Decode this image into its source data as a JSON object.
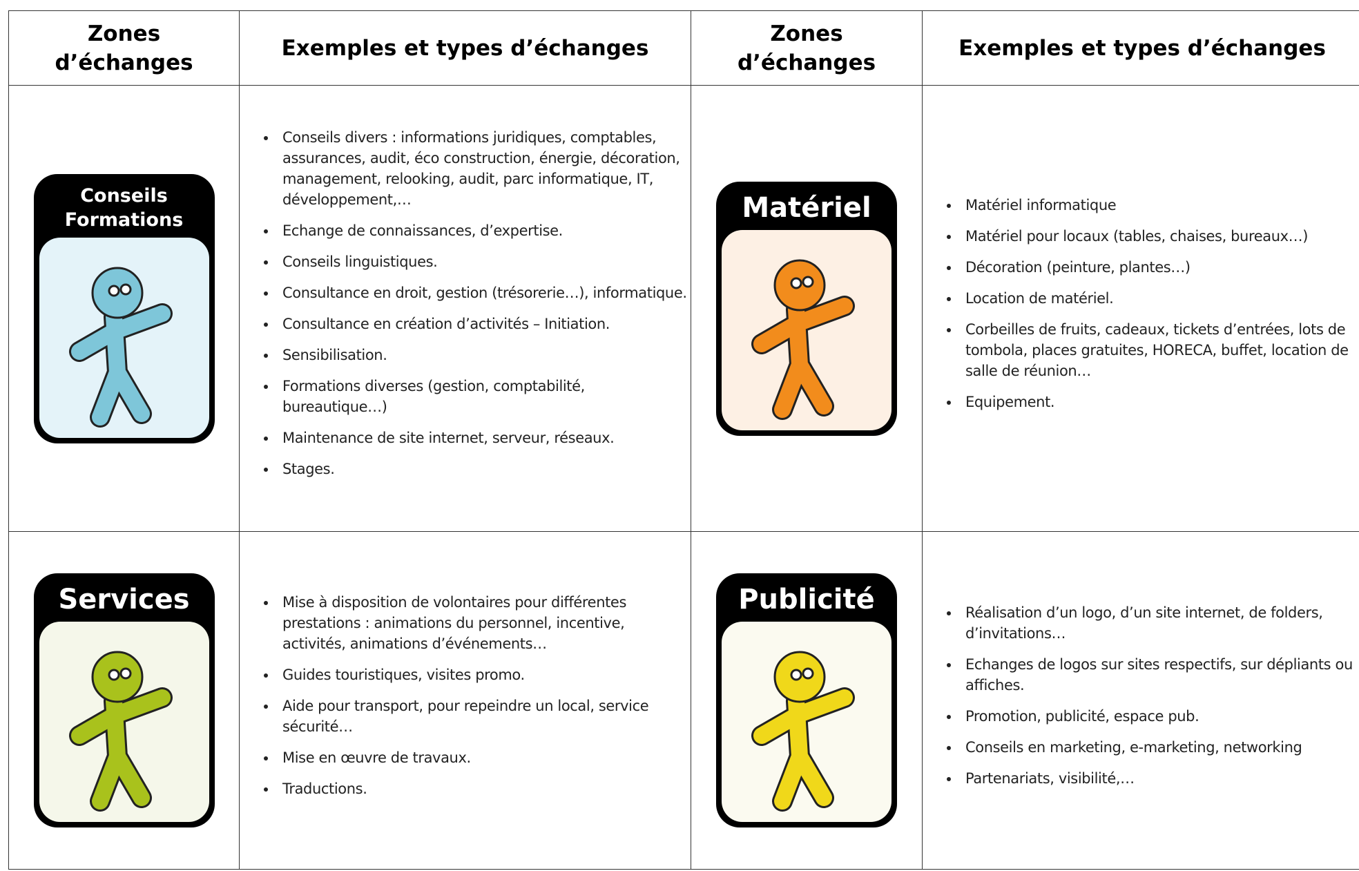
{
  "table": {
    "headers": [
      "Zones d’échanges",
      "Exemples et types d’échanges",
      "Zones d’échanges",
      "Exemples et types d’échanges"
    ],
    "rows": [
      [
        {
          "icon": "Conseils Formations"
        },
        {
          "items": [
            "Conseils divers : informations juridiques, comptables, assurances, audit, éco construction, énergie, décoration, management, relooking, audit, parc informatique, IT, développement,…",
            "Echange de connaissances, d’expertise.",
            "Conseils linguistiques.",
            "Consultance en droit, gestion (trésorerie…), informatique.",
            "Consultance en création d’activités – Initiation.",
            "Sensibilisation.",
            "Formations diverses (gestion, comptabilité, bureautique…)",
            "Maintenance de site internet, serveur, réseaux.",
            "Stages."
          ]
        },
        {
          "icon": "Matériel"
        },
        {
          "items": [
            "Matériel informatique",
            "Matériel pour locaux (tables, chaises, bureaux…)",
            "Décoration (peinture, plantes…)",
            "Location de matériel.",
            "Corbeilles de fruits, cadeaux, tickets d’entrées, lots de tombola, places gratuites, HORECA, buffet, location de salle de réunion…",
            "Equipement."
          ]
        }
      ],
      [
        {
          "icon": "Services"
        },
        {
          "items": [
            "Mise à disposition de volontaires pour différentes prestations : animations du personnel, incentive, activités, animations d’événements…",
            "Guides touristiques, visites promo.",
            "Aide pour transport, pour repeindre un local, service sécurité…",
            "Mise en œuvre de travaux.",
            "Traductions."
          ]
        },
        {
          "icon": "Publicité"
        },
        {
          "items": [
            "Réalisation d’un logo, d’un site internet, de folders, d’invitations…",
            "Echanges de logos sur sites respectifs, sur dépliants ou affiches.",
            "Promotion, publicité, espace pub.",
            "Conseils en marketing, e-marketing, networking",
            "Partenariats, visibilité,…"
          ]
        }
      ]
    ]
  }
}
